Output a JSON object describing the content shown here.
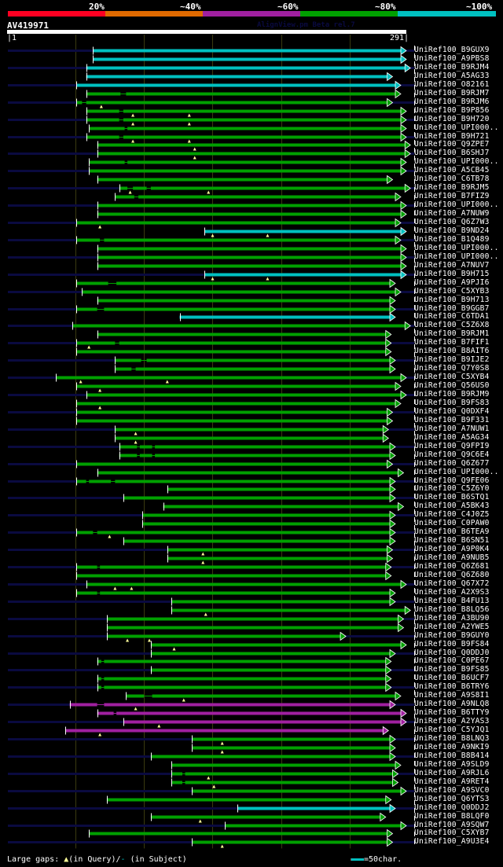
{
  "app": {
    "credit": "AlignView.pm Beta rel.7"
  },
  "identity_scale": {
    "labels": [
      "20%",
      "~40%",
      "~60%",
      "~80%",
      "~100%"
    ],
    "colors": [
      "#ff0022",
      "#e06a00",
      "#a020a0",
      "#00a000",
      "#00c0c0"
    ]
  },
  "query": {
    "name": "AV419971",
    "start_label": "|1",
    "end_label": "291|",
    "length": 291
  },
  "footer": {
    "gaps_label": "Large gaps:",
    "query_gap_symbol": "▲",
    "query_gap_text": "(in Query)/",
    "subject_gap_symbol": "-",
    "subject_gap_text": " (in Subject)",
    "scale_text": "=50char."
  },
  "chart_data": {
    "type": "alignment-overview",
    "x_axis": {
      "min": 1,
      "max": 291,
      "units": "query residue"
    },
    "grid_ticks": [
      50,
      100,
      150,
      200,
      250
    ],
    "hits": [
      {
        "label": "UniRef100_B9GUX9",
        "start": 63,
        "end": 287,
        "color": "cyan",
        "tail": true
      },
      {
        "label": "UniRef100_A9PBS8",
        "start": 63,
        "end": 287,
        "color": "cyan"
      },
      {
        "label": "UniRef100_B9RJM4",
        "start": 58,
        "end": 290,
        "color": "cyan",
        "tail": true
      },
      {
        "label": "UniRef100_A5AG33",
        "start": 58,
        "end": 277,
        "color": "cyan"
      },
      {
        "label": "UniRef100_O82161",
        "start": 51,
        "end": 283,
        "color": "cyan",
        "tail": true
      },
      {
        "label": "UniRef100_B9RJM7",
        "start": 58,
        "end": 283,
        "color": "green",
        "gaps": [
          [
            83,
            87
          ]
        ]
      },
      {
        "label": "UniRef100_B9RJM6",
        "start": 51,
        "end": 277,
        "color": "green",
        "gaps": [
          [
            55,
            58
          ]
        ],
        "marks": [
          69
        ],
        "tail": true
      },
      {
        "label": "UniRef100_B9P856",
        "start": 58,
        "end": 287,
        "color": "green",
        "gaps": [
          [
            82,
            85
          ]
        ],
        "marks": [
          92,
          133
        ]
      },
      {
        "label": "UniRef100_B9H720",
        "start": 58,
        "end": 287,
        "color": "green",
        "gaps": [
          [
            82,
            85
          ]
        ],
        "marks": [
          92,
          133
        ],
        "tail": true
      },
      {
        "label": "UniRef100_UPI000..",
        "start": 60,
        "end": 287,
        "color": "green",
        "gaps": [
          [
            86,
            88
          ]
        ]
      },
      {
        "label": "UniRef100_B9H721",
        "start": 58,
        "end": 287,
        "color": "green",
        "gaps": [
          [
            82,
            85
          ]
        ],
        "marks": [
          92,
          133
        ],
        "tail": true
      },
      {
        "label": "UniRef100_Q9ZPE7",
        "start": 66,
        "end": 290,
        "color": "green",
        "marks": [
          137
        ]
      },
      {
        "label": "UniRef100_B6SHJ7",
        "start": 66,
        "end": 290,
        "color": "green",
        "marks": [
          137
        ],
        "tail": true
      },
      {
        "label": "UniRef100_UPI000..",
        "start": 60,
        "end": 287,
        "color": "green",
        "gaps": [
          [
            86,
            88
          ]
        ]
      },
      {
        "label": "UniRef100_A5CB45",
        "start": 60,
        "end": 287,
        "color": "green",
        "tail": true
      },
      {
        "label": "UniRef100_C6TB78",
        "start": 66,
        "end": 277,
        "color": "green"
      },
      {
        "label": "UniRef100_B9RJM5",
        "start": 82,
        "end": 290,
        "color": "green",
        "gaps": [
          [
            88,
            92
          ],
          [
            102,
            105
          ]
        ],
        "marks": [
          90,
          147
        ],
        "tail": true
      },
      {
        "label": "UniRef100_B7FIZ9",
        "start": 79,
        "end": 283,
        "color": "green",
        "gaps": [
          [
            93,
            96
          ]
        ]
      },
      {
        "label": "UniRef100_UPI000..",
        "start": 66,
        "end": 287,
        "color": "green",
        "tail": true
      },
      {
        "label": "UniRef100_A7NUW9",
        "start": 66,
        "end": 287,
        "color": "green"
      },
      {
        "label": "UniRef100_Q6Z7W3",
        "start": 51,
        "end": 283,
        "color": "green",
        "marks": [
          68
        ],
        "tail": true
      },
      {
        "label": "UniRef100_B9ND24",
        "start": 144,
        "end": 287,
        "color": "cyan",
        "marks": [
          150,
          190
        ]
      },
      {
        "label": "UniRef100_B1Q489",
        "start": 51,
        "end": 283,
        "color": "green",
        "gaps": [
          [
            68,
            71
          ]
        ],
        "tail": true
      },
      {
        "label": "UniRef100_UPI000..",
        "start": 66,
        "end": 287,
        "color": "green"
      },
      {
        "label": "UniRef100_UPI000..",
        "start": 66,
        "end": 287,
        "color": "green",
        "tail": true
      },
      {
        "label": "UniRef100_A7NUV7",
        "start": 66,
        "end": 287,
        "color": "green"
      },
      {
        "label": "UniRef100_B9H715",
        "start": 144,
        "end": 287,
        "color": "cyan",
        "marks": [
          150,
          190
        ],
        "tail": true
      },
      {
        "label": "UniRef100_A9PJI6",
        "start": 51,
        "end": 279,
        "color": "green",
        "gaps": [
          [
            74,
            80
          ]
        ]
      },
      {
        "label": "UniRef100_C5XYB3",
        "start": 55,
        "end": 283,
        "color": "green",
        "tail": true
      },
      {
        "label": "UniRef100_B9H713",
        "start": 66,
        "end": 279,
        "color": "green"
      },
      {
        "label": "UniRef100_B9GGB7",
        "start": 51,
        "end": 279,
        "color": "green",
        "gaps": [
          [
            66,
            71
          ]
        ],
        "tail": true
      },
      {
        "label": "UniRef100_C6TDA1",
        "start": 126,
        "end": 279,
        "color": "cyan"
      },
      {
        "label": "UniRef100_C5Z6X8",
        "start": 48,
        "end": 290,
        "color": "green",
        "tail": true
      },
      {
        "label": "UniRef100_B9RJM1",
        "start": 66,
        "end": 276,
        "color": "green"
      },
      {
        "label": "UniRef100_B7FIF1",
        "start": 51,
        "end": 276,
        "color": "green",
        "gaps": [
          [
            79,
            82
          ]
        ],
        "marks": [
          60
        ],
        "tail": true
      },
      {
        "label": "UniRef100_B8AIT6",
        "start": 51,
        "end": 276,
        "color": "green"
      },
      {
        "label": "UniRef100_B9IJE2",
        "start": 79,
        "end": 279,
        "color": "green",
        "gaps": [
          [
            98,
            102
          ]
        ],
        "tail": true
      },
      {
        "label": "UniRef100_Q7Y0S8",
        "start": 79,
        "end": 279,
        "color": "green",
        "gaps": [
          [
            91,
            94
          ]
        ]
      },
      {
        "label": "UniRef100_C5XYB4",
        "start": 36,
        "end": 287,
        "color": "green",
        "marks": [
          54,
          117
        ],
        "tail": true
      },
      {
        "label": "UniRef100_Q56US0",
        "start": 51,
        "end": 283,
        "color": "green",
        "marks": [
          68
        ]
      },
      {
        "label": "UniRef100_B9RJM9",
        "start": 58,
        "end": 287,
        "color": "green",
        "tail": true
      },
      {
        "label": "UniRef100_B9FS83",
        "start": 51,
        "end": 283,
        "color": "green",
        "marks": [
          68
        ]
      },
      {
        "label": "UniRef100_Q0DXF4",
        "start": 51,
        "end": 277,
        "color": "green",
        "tail": true
      },
      {
        "label": "UniRef100_B9F331",
        "start": 51,
        "end": 277,
        "color": "green"
      },
      {
        "label": "UniRef100_A7NUW1",
        "start": 79,
        "end": 274,
        "color": "green",
        "marks": [
          94
        ],
        "tail": true
      },
      {
        "label": "UniRef100_A5AG34",
        "start": 79,
        "end": 274,
        "color": "green",
        "marks": [
          94
        ]
      },
      {
        "label": "UniRef100_Q9FPI9",
        "start": 82,
        "end": 279,
        "color": "green",
        "gaps": [
          [
            95,
            97
          ],
          [
            106,
            108
          ]
        ],
        "tail": true
      },
      {
        "label": "UniRef100_Q9C6E4",
        "start": 82,
        "end": 279,
        "color": "green",
        "gaps": [
          [
            95,
            97
          ],
          [
            106,
            108
          ]
        ]
      },
      {
        "label": "UniRef100_Q6Z677",
        "start": 51,
        "end": 277,
        "color": "green",
        "tail": true
      },
      {
        "label": "UniRef100_UPI000..",
        "start": 66,
        "end": 285,
        "color": "green"
      },
      {
        "label": "UniRef100_Q9FE06",
        "start": 51,
        "end": 279,
        "color": "green",
        "gaps": [
          [
            58,
            60
          ],
          [
            76,
            79
          ]
        ],
        "tail": true
      },
      {
        "label": "UniRef100_C5Z6Y0",
        "start": 117,
        "end": 279,
        "color": "green"
      },
      {
        "label": "UniRef100_B6STQ1",
        "start": 85,
        "end": 279,
        "color": "green",
        "tail": true
      },
      {
        "label": "UniRef100_A5BK43",
        "start": 114,
        "end": 285,
        "color": "green"
      },
      {
        "label": "UniRef100_C4J0Z5",
        "start": 99,
        "end": 279,
        "color": "green",
        "tail": true
      },
      {
        "label": "UniRef100_C0PAW0",
        "start": 99,
        "end": 279,
        "color": "green"
      },
      {
        "label": "UniRef100_B6TEA9",
        "start": 51,
        "end": 279,
        "color": "green",
        "gaps": [
          [
            63,
            66
          ]
        ],
        "marks": [
          75
        ],
        "tail": true
      },
      {
        "label": "UniRef100_B6SN51",
        "start": 85,
        "end": 279,
        "color": "green"
      },
      {
        "label": "UniRef100_A9P0K4",
        "start": 117,
        "end": 277,
        "color": "green",
        "marks": [
          143
        ],
        "tail": true
      },
      {
        "label": "UniRef100_A9NUB5",
        "start": 117,
        "end": 277,
        "color": "green",
        "marks": [
          143
        ]
      },
      {
        "label": "UniRef100_Q6Z681",
        "start": 51,
        "end": 276,
        "color": "green",
        "gaps": [
          [
            66,
            68
          ]
        ],
        "tail": true
      },
      {
        "label": "UniRef100_Q6Z680",
        "start": 51,
        "end": 276,
        "color": "green"
      },
      {
        "label": "UniRef100_Q67X72",
        "start": 58,
        "end": 287,
        "color": "green",
        "marks": [
          79,
          91
        ],
        "tail": true
      },
      {
        "label": "UniRef100_A2X9S3",
        "start": 51,
        "end": 279,
        "color": "green",
        "gaps": [
          [
            66,
            68
          ]
        ]
      },
      {
        "label": "UniRef100_B4FU13",
        "start": 120,
        "end": 279,
        "color": "green",
        "tail": true
      },
      {
        "label": "UniRef100_B8LQ56",
        "start": 120,
        "end": 290,
        "color": "green",
        "marks": [
          145
        ]
      },
      {
        "label": "UniRef100_A3BU90",
        "start": 73,
        "end": 285,
        "color": "green",
        "tail": true
      },
      {
        "label": "UniRef100_A2YWE5",
        "start": 73,
        "end": 285,
        "color": "green"
      },
      {
        "label": "UniRef100_B9GUY0",
        "start": 73,
        "end": 243,
        "color": "green",
        "marks": [
          88,
          104
        ],
        "tail": true
      },
      {
        "label": "UniRef100_B9FS84",
        "start": 105,
        "end": 287,
        "color": "green",
        "marks": [
          122
        ]
      },
      {
        "label": "UniRef100_Q0DDJ0",
        "start": 105,
        "end": 279,
        "color": "green",
        "tail": true
      },
      {
        "label": "UniRef100_C0PE67",
        "start": 66,
        "end": 276,
        "color": "green",
        "gaps": [
          [
            69,
            71
          ]
        ]
      },
      {
        "label": "UniRef100_B9FS85",
        "start": 105,
        "end": 276,
        "color": "green",
        "tail": true
      },
      {
        "label": "UniRef100_B6UCF7",
        "start": 66,
        "end": 276,
        "color": "green",
        "gaps": [
          [
            69,
            71
          ]
        ]
      },
      {
        "label": "UniRef100_B6TRY6",
        "start": 66,
        "end": 276,
        "color": "green",
        "gaps": [
          [
            69,
            71
          ]
        ],
        "tail": true
      },
      {
        "label": "UniRef100_A9S8I1",
        "start": 87,
        "end": 283,
        "color": "green",
        "gaps": [
          [
            100,
            106
          ]
        ],
        "marks": [
          129
        ]
      },
      {
        "label": "UniRef100_A9NLQ8",
        "start": 46,
        "end": 279,
        "color": "purple",
        "gaps": [
          [
            66,
            71
          ]
        ],
        "marks": [
          94
        ],
        "tail": true
      },
      {
        "label": "UniRef100_B6TTY9",
        "start": 66,
        "end": 287,
        "color": "purple",
        "gaps": [
          [
            78,
            80
          ]
        ]
      },
      {
        "label": "UniRef100_A2YAS3",
        "start": 85,
        "end": 287,
        "color": "purple",
        "marks": [
          111
        ],
        "tail": true
      },
      {
        "label": "UniRef100_C5YJQ1",
        "start": 43,
        "end": 274,
        "color": "purple",
        "marks": [
          68
        ]
      },
      {
        "label": "UniRef100_B8LNQ3",
        "start": 135,
        "end": 279,
        "color": "green",
        "marks": [
          157
        ],
        "tail": true
      },
      {
        "label": "UniRef100_A9NKI9",
        "start": 135,
        "end": 279,
        "color": "green",
        "marks": [
          157
        ]
      },
      {
        "label": "UniRef100_B8B414",
        "start": 105,
        "end": 279,
        "color": "green",
        "tail": true
      },
      {
        "label": "UniRef100_A9SLD9",
        "start": 120,
        "end": 283,
        "color": "green"
      },
      {
        "label": "UniRef100_A9RJL6",
        "start": 120,
        "end": 281,
        "color": "green",
        "gaps": [
          [
            128,
            130
          ]
        ],
        "marks": [
          147
        ],
        "tail": true
      },
      {
        "label": "UniRef100_A9RET4",
        "start": 120,
        "end": 281,
        "color": "green",
        "gaps": [
          [
            128,
            130
          ]
        ],
        "marks": [
          151
        ]
      },
      {
        "label": "UniRef100_A9SVC0",
        "start": 135,
        "end": 287,
        "color": "green",
        "tail": true
      },
      {
        "label": "UniRef100_Q6YTS3",
        "start": 73,
        "end": 276,
        "color": "green"
      },
      {
        "label": "UniRef100_Q0DDJ2",
        "start": 168,
        "end": 279,
        "color": "cyan",
        "tail": true
      },
      {
        "label": "UniRef100_B8LQF0",
        "start": 105,
        "end": 272,
        "color": "green",
        "marks": [
          141
        ]
      },
      {
        "label": "UniRef100_A9SQW7",
        "start": 159,
        "end": 287,
        "color": "green",
        "tail": true
      },
      {
        "label": "UniRef100_C5XYB7",
        "start": 60,
        "end": 277,
        "color": "green"
      },
      {
        "label": "UniRef100_A9U3E4",
        "start": 135,
        "end": 277,
        "color": "green",
        "marks": [
          157
        ],
        "tail": true
      }
    ]
  }
}
